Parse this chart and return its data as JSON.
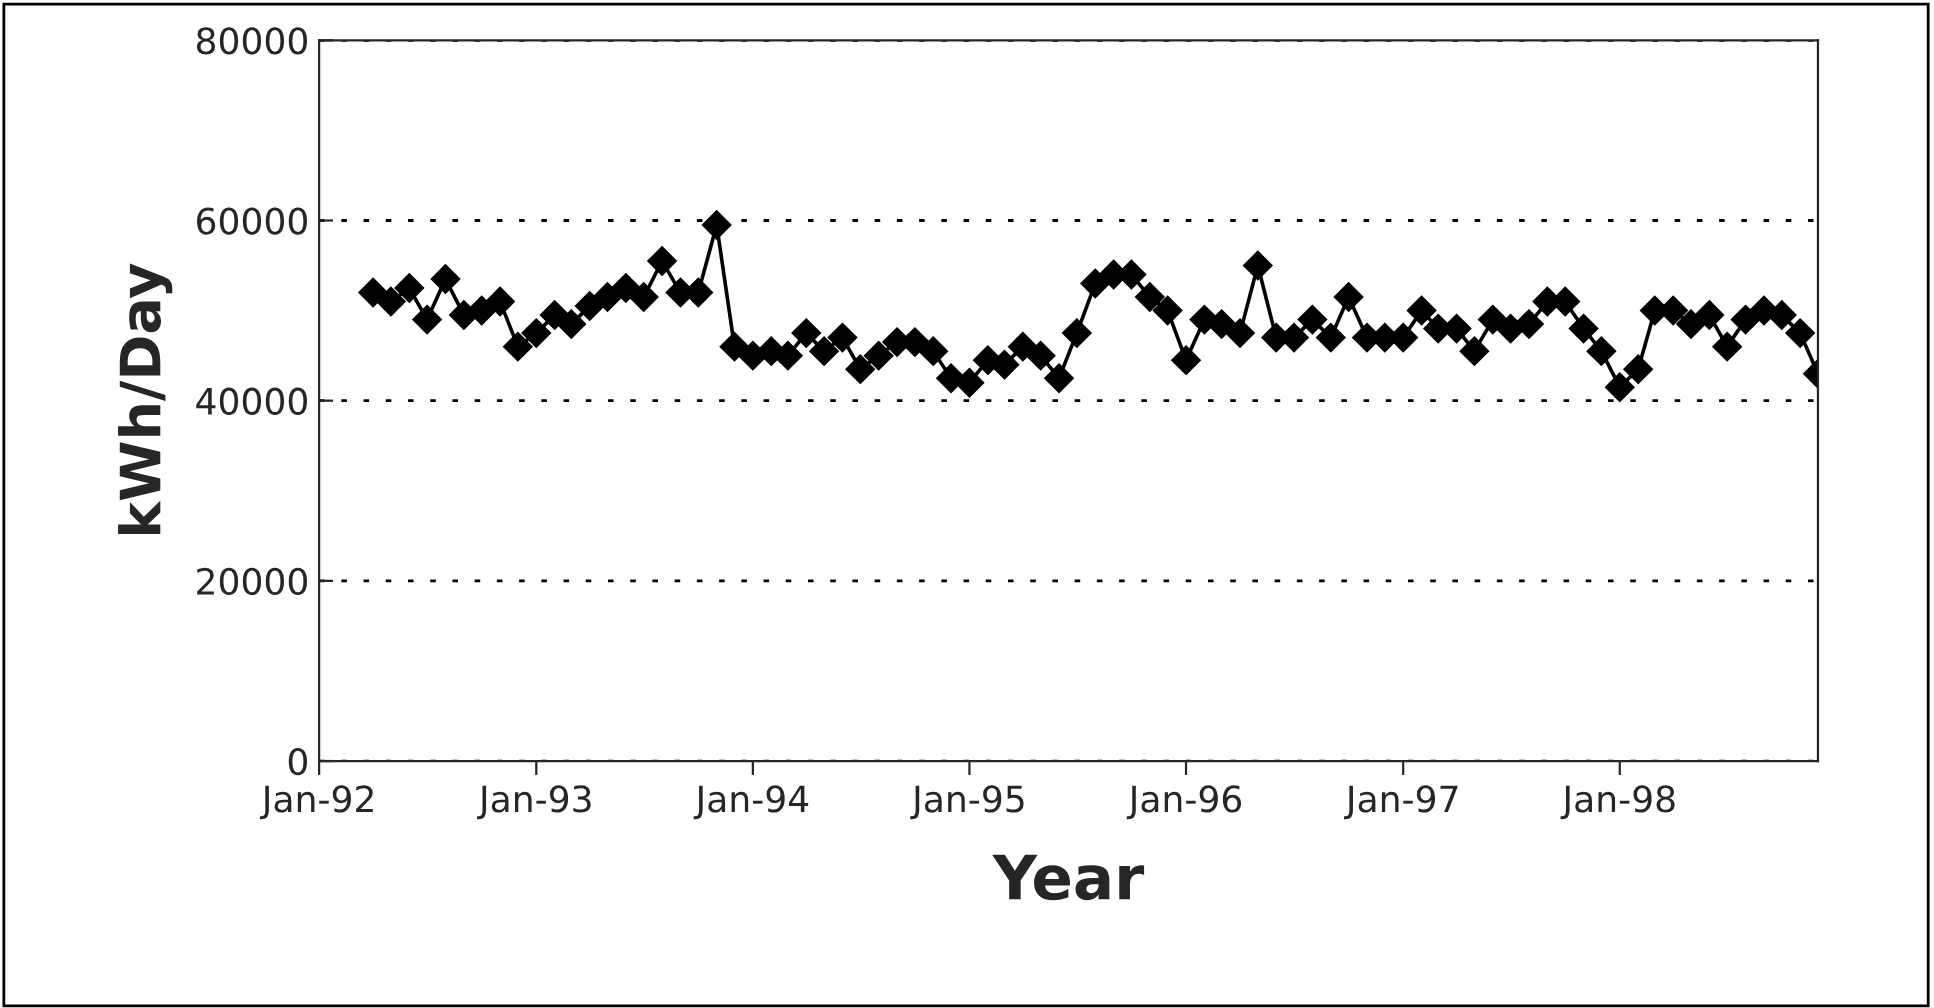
{
  "chart_data": {
    "type": "line",
    "xlabel": "Year",
    "ylabel": "kWh/Day",
    "marker": "diamond",
    "line_style": "solid",
    "grid": "y",
    "color": "#000000",
    "x": [
      "1992-04",
      "1992-05",
      "1992-06",
      "1992-07",
      "1992-08",
      "1992-09",
      "1992-10",
      "1992-11",
      "1992-12",
      "1993-01",
      "1993-02",
      "1993-03",
      "1993-04",
      "1993-05",
      "1993-06",
      "1993-07",
      "1993-08",
      "1993-09",
      "1993-10",
      "1993-11",
      "1993-12",
      "1994-01",
      "1994-02",
      "1994-03",
      "1994-04",
      "1994-05",
      "1994-06",
      "1994-07",
      "1994-08",
      "1994-09",
      "1994-10",
      "1994-11",
      "1994-12",
      "1995-01",
      "1995-02",
      "1995-03",
      "1995-04",
      "1995-05",
      "1995-06",
      "1995-07",
      "1995-08",
      "1995-09",
      "1995-10",
      "1995-11",
      "1995-12",
      "1996-01",
      "1996-02",
      "1996-03",
      "1996-04",
      "1996-05",
      "1996-06",
      "1996-07",
      "1996-08",
      "1996-09",
      "1996-10",
      "1996-11",
      "1996-12",
      "1997-01",
      "1997-02",
      "1997-03",
      "1997-04",
      "1997-05",
      "1997-06",
      "1997-07",
      "1997-08",
      "1997-09",
      "1997-10",
      "1997-11",
      "1997-12",
      "1998-01",
      "1998-02",
      "1998-03",
      "1998-04",
      "1998-05",
      "1998-06",
      "1998-07",
      "1998-08",
      "1998-09",
      "1998-10",
      "1998-11",
      "1998-12"
    ],
    "values": [
      52000,
      51000,
      52500,
      49000,
      53500,
      49500,
      50000,
      51000,
      46000,
      47500,
      49500,
      48500,
      50500,
      51500,
      52500,
      51500,
      55500,
      52000,
      52000,
      59500,
      46000,
      45000,
      45500,
      45000,
      47500,
      45500,
      47000,
      43500,
      45000,
      46500,
      46500,
      45500,
      42500,
      42000,
      44500,
      44000,
      46000,
      45000,
      42500,
      47500,
      53000,
      54000,
      54000,
      51500,
      50000,
      44500,
      49000,
      48500,
      47500,
      55000,
      47000,
      47000,
      49000,
      47000,
      51500,
      47000,
      47000,
      47000,
      50000,
      48000,
      48000,
      45500,
      49000,
      48000,
      48500,
      51000,
      51000,
      48000,
      45500,
      41500,
      43500,
      50000,
      50000,
      48500,
      49500,
      46000,
      49000,
      50000,
      49500,
      47500,
      43000
    ],
    "xlim": [
      "1992-01",
      "1998-12"
    ],
    "xticks": [
      {
        "value": "1992-01",
        "label": "Jan-92"
      },
      {
        "value": "1993-01",
        "label": "Jan-93"
      },
      {
        "value": "1994-01",
        "label": "Jan-94"
      },
      {
        "value": "1995-01",
        "label": "Jan-95"
      },
      {
        "value": "1996-01",
        "label": "Jan-96"
      },
      {
        "value": "1997-01",
        "label": "Jan-97"
      },
      {
        "value": "1998-01",
        "label": "Jan-98"
      }
    ],
    "ylim": [
      0,
      80000
    ],
    "yticks": [
      0,
      20000,
      40000,
      60000,
      80000
    ]
  }
}
